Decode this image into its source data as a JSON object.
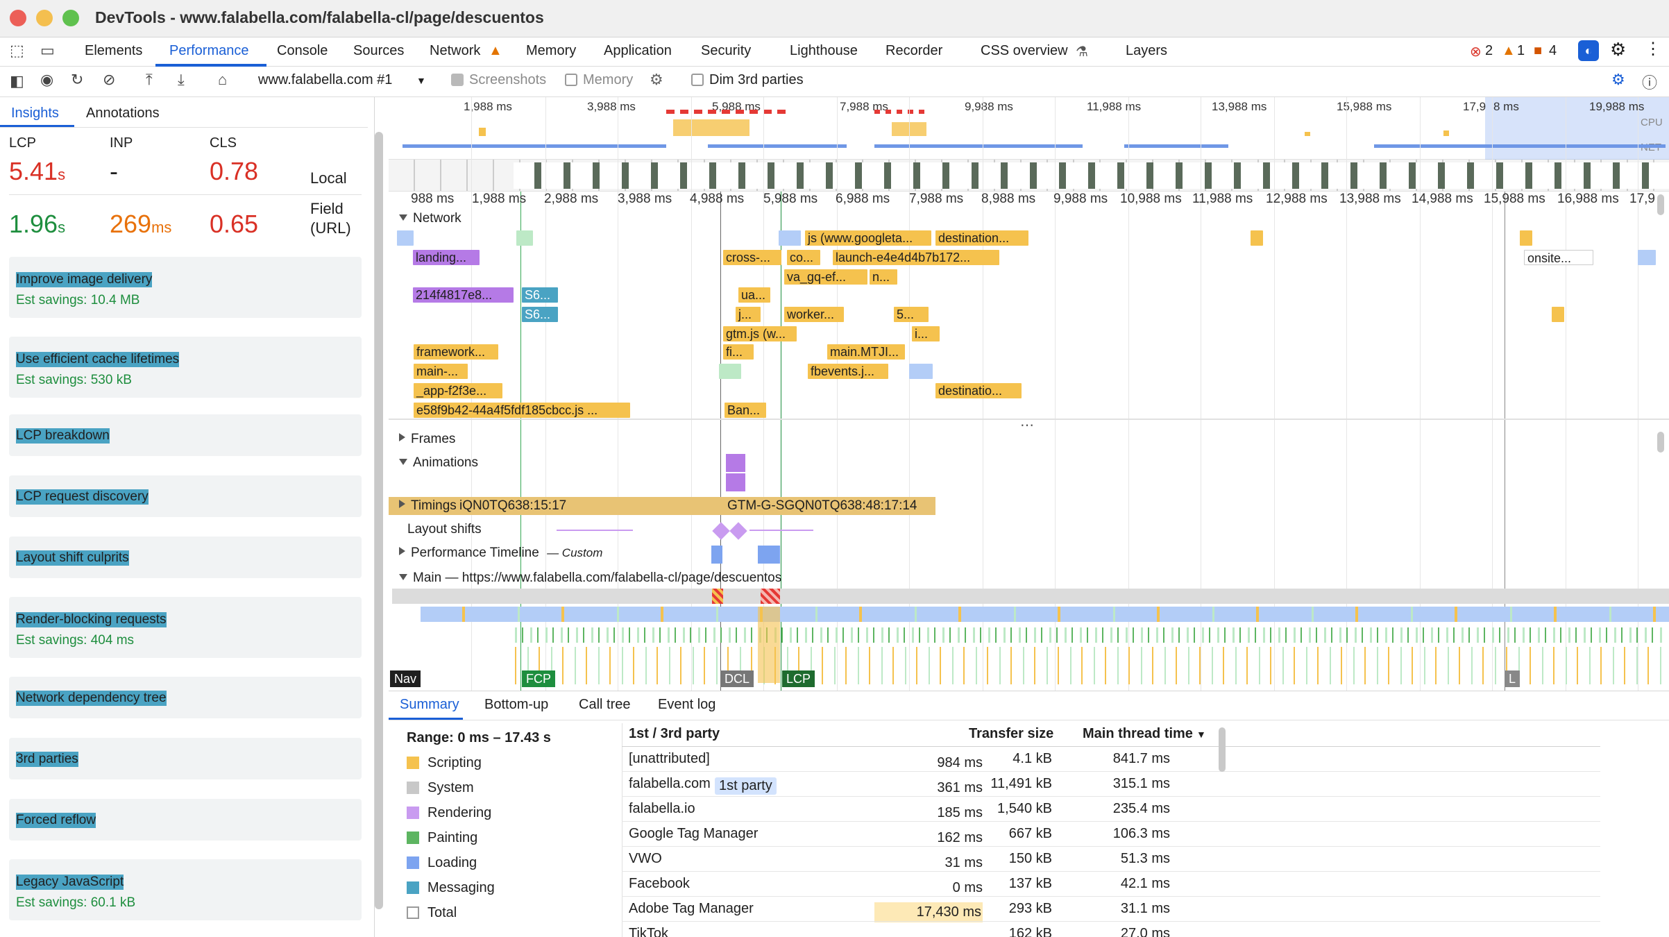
{
  "window": {
    "title": "DevTools - www.falabella.com/falabella-cl/page/descuentos"
  },
  "panel_tabs": [
    {
      "label": "Elements",
      "active": false
    },
    {
      "label": "Performance",
      "active": true
    },
    {
      "label": "Console",
      "active": false
    },
    {
      "label": "Sources",
      "active": false
    },
    {
      "label": "Network",
      "active": false,
      "warning": true
    },
    {
      "label": "Memory",
      "active": false
    },
    {
      "label": "Application",
      "active": false
    },
    {
      "label": "Security",
      "active": false
    },
    {
      "label": "Lighthouse",
      "active": false
    },
    {
      "label": "Recorder",
      "active": false
    },
    {
      "label": "CSS overview",
      "active": false
    },
    {
      "label": "Layers",
      "active": false
    }
  ],
  "status_counts": {
    "errors": "2",
    "warnings": "1",
    "issues": "4"
  },
  "toolbar": {
    "recording_select": "www.falabella.com #1",
    "screenshots_label": "Screenshots",
    "memory_label": "Memory",
    "dim_label": "Dim 3rd parties"
  },
  "sidebar": {
    "tabs": [
      "Insights",
      "Annotations"
    ],
    "metrics": {
      "labels": [
        "LCP",
        "INP",
        "CLS"
      ],
      "local": {
        "lcp": "5.41",
        "lcp_unit": "s",
        "inp": "-",
        "cls": "0.78",
        "label": "Local"
      },
      "field": {
        "lcp": "1.96",
        "lcp_unit": "s",
        "inp": "269",
        "inp_unit": "ms",
        "cls": "0.65",
        "label1": "Field",
        "label2": "(URL)"
      }
    },
    "insights": [
      {
        "title": "Improve image delivery",
        "savings": "Est savings: 10.4 MB"
      },
      {
        "title": "Use efficient cache lifetimes",
        "savings": "Est savings: 530 kB"
      },
      {
        "title": "LCP breakdown"
      },
      {
        "title": "LCP request discovery"
      },
      {
        "title": "Layout shift culprits"
      },
      {
        "title": "Render-blocking requests",
        "savings": "Est savings: 404 ms"
      },
      {
        "title": "Network dependency tree"
      },
      {
        "title": "3rd parties"
      },
      {
        "title": "Forced reflow"
      },
      {
        "title": "Legacy JavaScript",
        "savings": "Est savings: 60.1 kB"
      }
    ]
  },
  "overview_ticks": [
    "1,988 ms",
    "3,988 ms",
    "5,988 ms",
    "7,988 ms",
    "9,988 ms",
    "11,988 ms",
    "13,988 ms",
    "15,988 ms",
    "17,9",
    "8 ms",
    "19,988 ms"
  ],
  "overview_labels": {
    "cpu": "CPU",
    "net": "NET"
  },
  "ruler_ticks": [
    "988 ms",
    "1,988 ms",
    "2,988 ms",
    "3,988 ms",
    "4,988 ms",
    "5,988 ms",
    "6,988 ms",
    "7,988 ms",
    "8,988 ms",
    "9,988 ms",
    "10,988 ms",
    "11,988 ms",
    "12,988 ms",
    "13,988 ms",
    "14,988 ms",
    "15,988 ms",
    "16,988 ms",
    "17,9"
  ],
  "tracks": {
    "network": "Network",
    "frames": "Frames",
    "animations": "Animations",
    "timings": "Timings",
    "layout_shifts": "Layout shifts",
    "perf_timeline": "Performance Timeline",
    "perf_custom": "— Custom",
    "main": "Main — https://www.falabella.com/falabella-cl/page/descuentos"
  },
  "network_bars": {
    "landing": "landing...",
    "hash1": "214f4817e8...",
    "s61": "S6...",
    "s62": "S6...",
    "framework": "framework...",
    "main": "main-...",
    "app": "_app-f2f3e...",
    "e58": "e58f9b42-44a4f5fdf185cbcc.js ...",
    "js_google": "js (www.googleta...",
    "destination1": "destination...",
    "cross": "cross-...",
    "co": "co...",
    "launch": "launch-e4e4d4b7b172...",
    "vagq": "va_gq-ef...",
    "n": "n...",
    "ua": "ua...",
    "j": "j...",
    "worker": "worker...",
    "five": "5...",
    "gtm": "gtm.js (w...",
    "i": "i...",
    "fi": "fi...",
    "mainmtj": "main.MTJI...",
    "fbevents": "fbevents.j...",
    "destination2": "destinatio...",
    "ban": "Ban...",
    "onsite": "onsite..."
  },
  "timings_labels": {
    "t1": "iQN0TQ638:15:17",
    "t2": "GTM-G-SGQN0TQ638:48:17:14"
  },
  "markers": {
    "nav": "Nav",
    "fcp": "FCP",
    "dcl": "DCL",
    "lcp": "LCP",
    "l": "L"
  },
  "bottom": {
    "tabs": [
      "Summary",
      "Bottom-up",
      "Call tree",
      "Event log"
    ],
    "range": "Range: 0 ms – 17.43 s",
    "categories": [
      {
        "name": "Scripting",
        "value": "984 ms",
        "color": "#f5c24e"
      },
      {
        "name": "System",
        "value": "361 ms",
        "color": "#c8c8c8"
      },
      {
        "name": "Rendering",
        "value": "185 ms",
        "color": "#b57ae6"
      },
      {
        "name": "Painting",
        "value": "162 ms",
        "color": "#5db561"
      },
      {
        "name": "Loading",
        "value": "31 ms",
        "color": "#7da4f0"
      },
      {
        "name": "Messaging",
        "value": "0 ms",
        "color": "#4aa3c3"
      },
      {
        "name": "Total",
        "value": "17,430 ms",
        "color": "#ffffff"
      }
    ],
    "table": {
      "headers": {
        "party": "1st / 3rd party",
        "transfer": "Transfer size",
        "main": "Main thread time"
      },
      "rows": [
        {
          "name": "[unattributed]",
          "transfer": "4.1 kB",
          "main": "841.7 ms"
        },
        {
          "name": "falabella.com",
          "badge": "1st party",
          "transfer": "11,491 kB",
          "main": "315.1 ms"
        },
        {
          "name": "falabella.io",
          "transfer": "1,540 kB",
          "main": "235.4 ms"
        },
        {
          "name": "Google Tag Manager",
          "transfer": "667 kB",
          "main": "106.3 ms"
        },
        {
          "name": "VWO",
          "transfer": "150 kB",
          "main": "51.3 ms"
        },
        {
          "name": "Facebook",
          "transfer": "137 kB",
          "main": "42.1 ms"
        },
        {
          "name": "Adobe Tag Manager",
          "transfer": "293 kB",
          "main": "31.1 ms"
        },
        {
          "name": "TikTok",
          "transfer": "162 kB",
          "main": "27.0 ms"
        }
      ]
    }
  }
}
